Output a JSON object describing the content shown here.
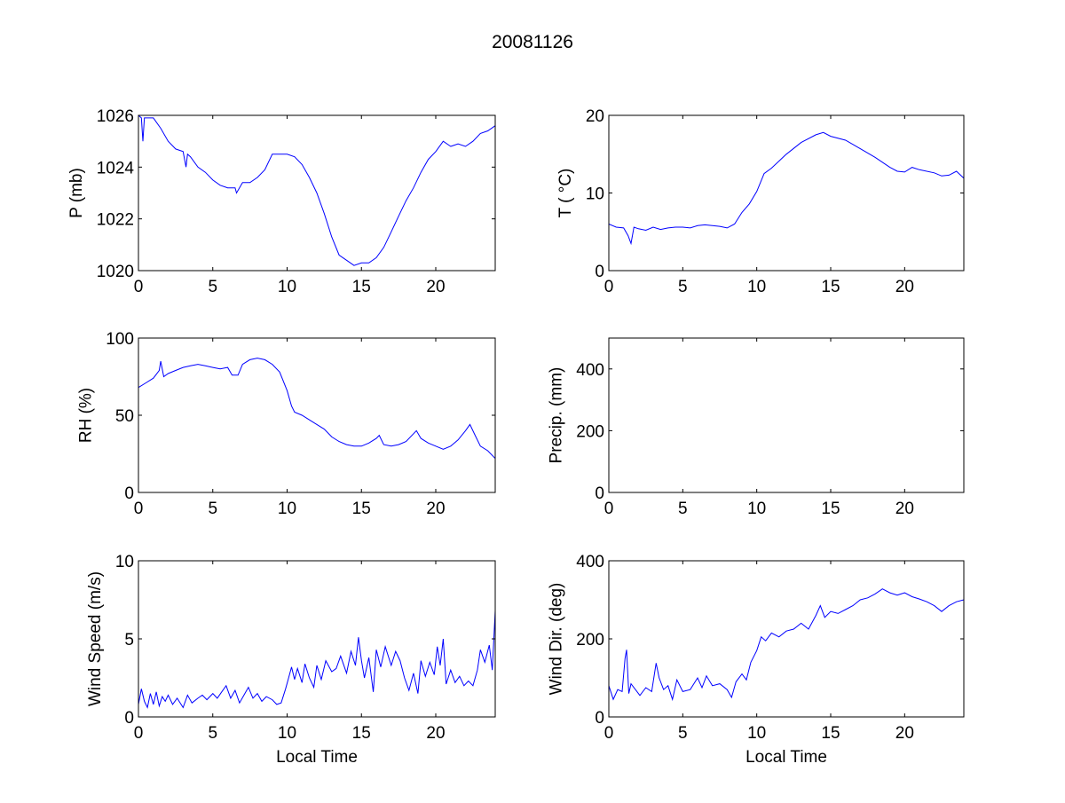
{
  "title": "20081126",
  "colors": {
    "line": "#0000ff",
    "axes": "#000000",
    "background": "#ffffff"
  },
  "chart_data": [
    {
      "type": "line",
      "panel": "top-left",
      "xlabel": "",
      "ylabel": "P (mb)",
      "xlim": [
        0,
        24
      ],
      "ylim": [
        1020,
        1026
      ],
      "xticks": [
        "0",
        "5",
        "10",
        "15",
        "20"
      ],
      "yticks": [
        "1020",
        "1022",
        "1024",
        "1026"
      ],
      "xtick_values": [
        0,
        5,
        10,
        15,
        20
      ],
      "ytick_values": [
        1020,
        1022,
        1024,
        1026
      ],
      "x": [
        0,
        0.2,
        0.3,
        0.4,
        1,
        1.5,
        2,
        2.5,
        3,
        3.2,
        3.3,
        3.5,
        4,
        4.5,
        5,
        5.5,
        6,
        6.5,
        6.6,
        7,
        7.5,
        8,
        8.5,
        9,
        10,
        10.5,
        11,
        11.5,
        12,
        12.5,
        13,
        13.5,
        14,
        14.5,
        15,
        15.5,
        16,
        16.5,
        17,
        17.5,
        18,
        18.5,
        19,
        19.5,
        20,
        20.5,
        21,
        21.5,
        22,
        22.5,
        23,
        23.5,
        24
      ],
      "y": [
        1026,
        1025.9,
        1025,
        1025.9,
        1025.9,
        1025.5,
        1025,
        1024.7,
        1024.6,
        1024.0,
        1024.5,
        1024.4,
        1024,
        1023.8,
        1023.5,
        1023.3,
        1023.2,
        1023.2,
        1023.0,
        1023.4,
        1023.4,
        1023.6,
        1023.9,
        1024.5,
        1024.5,
        1024.4,
        1024.1,
        1023.6,
        1023,
        1022.2,
        1021.3,
        1020.6,
        1020.4,
        1020.2,
        1020.3,
        1020.3,
        1020.5,
        1020.9,
        1021.5,
        1022.1,
        1022.7,
        1023.2,
        1023.8,
        1024.3,
        1024.6,
        1025.0,
        1024.8,
        1024.9,
        1024.8,
        1025.0,
        1025.3,
        1025.4,
        1025.6
      ]
    },
    {
      "type": "line",
      "panel": "top-right",
      "xlabel": "",
      "ylabel": "T ( °C)",
      "xlim": [
        0,
        24
      ],
      "ylim": [
        0,
        20
      ],
      "xticks": [
        "0",
        "5",
        "10",
        "15",
        "20"
      ],
      "yticks": [
        "0",
        "10",
        "20"
      ],
      "xtick_values": [
        0,
        5,
        10,
        15,
        20
      ],
      "ytick_values": [
        0,
        10,
        20
      ],
      "x": [
        0,
        0.5,
        1,
        1.3,
        1.5,
        1.7,
        2,
        2.5,
        3,
        3.5,
        4,
        4.5,
        5,
        5.5,
        6,
        6.5,
        7,
        7.5,
        8,
        8.5,
        9,
        9.5,
        10,
        10.5,
        11,
        12,
        13,
        14,
        14.5,
        15,
        16,
        17,
        18,
        19,
        19.5,
        20,
        20.5,
        21,
        22,
        22.5,
        23,
        23.5,
        24
      ],
      "y": [
        6,
        5.6,
        5.5,
        4.5,
        3.5,
        5.6,
        5.4,
        5.2,
        5.6,
        5.3,
        5.5,
        5.6,
        5.6,
        5.5,
        5.8,
        5.9,
        5.8,
        5.7,
        5.5,
        6,
        7.5,
        8.6,
        10.2,
        12.5,
        13.2,
        15,
        16.5,
        17.5,
        17.8,
        17.3,
        16.8,
        15.7,
        14.6,
        13.3,
        12.8,
        12.7,
        13.3,
        13,
        12.6,
        12.2,
        12.3,
        12.8,
        11.9
      ]
    },
    {
      "type": "line",
      "panel": "middle-left",
      "xlabel": "",
      "ylabel": "RH (%)",
      "xlim": [
        0,
        24
      ],
      "ylim": [
        0,
        100
      ],
      "xticks": [
        "0",
        "5",
        "10",
        "15",
        "20"
      ],
      "yticks": [
        "0",
        "50",
        "100"
      ],
      "xtick_values": [
        0,
        5,
        10,
        15,
        20
      ],
      "ytick_values": [
        0,
        50,
        100
      ],
      "x": [
        0,
        0.5,
        1,
        1.4,
        1.5,
        1.7,
        2,
        2.5,
        3,
        3.5,
        4,
        4.5,
        5,
        5.5,
        6,
        6.3,
        6.7,
        7,
        7.5,
        8,
        8.5,
        9,
        9.5,
        10,
        10.3,
        10.5,
        11,
        11.5,
        12,
        12.5,
        13,
        13.5,
        14,
        14.5,
        15,
        15.5,
        16,
        16.2,
        16.5,
        17,
        17.5,
        18,
        18.7,
        19,
        19.5,
        20,
        20.5,
        21,
        21.5,
        22,
        22.3,
        22.6,
        23,
        23.5,
        24
      ],
      "y": [
        68,
        71,
        74,
        79,
        85,
        75,
        77,
        79,
        81,
        82,
        83,
        82,
        81,
        80,
        81,
        76,
        76,
        83,
        86,
        87,
        86,
        83,
        78,
        66,
        56,
        52,
        50,
        47,
        44,
        41,
        36,
        33,
        31,
        30,
        30,
        32,
        35,
        37,
        31,
        30,
        31,
        33,
        40,
        35,
        32,
        30,
        28,
        30,
        34,
        40,
        44,
        38,
        30,
        27,
        22
      ]
    },
    {
      "type": "line",
      "panel": "middle-right",
      "xlabel": "",
      "ylabel": "Precip. (mm)",
      "xlim": [
        0,
        24
      ],
      "ylim": [
        0,
        500
      ],
      "xticks": [
        "0",
        "5",
        "10",
        "15",
        "20"
      ],
      "yticks": [
        "0",
        "200",
        "400"
      ],
      "xtick_values": [
        0,
        5,
        10,
        15,
        20
      ],
      "ytick_values": [
        0,
        200,
        400
      ],
      "x": [],
      "y": []
    },
    {
      "type": "line",
      "panel": "bottom-left",
      "xlabel": "Local Time",
      "ylabel": "Wind Speed (m/s)",
      "xlim": [
        0,
        24
      ],
      "ylim": [
        0,
        10
      ],
      "xticks": [
        "0",
        "5",
        "10",
        "15",
        "20"
      ],
      "yticks": [
        "0",
        "5",
        "10"
      ],
      "xtick_values": [
        0,
        5,
        10,
        15,
        20
      ],
      "ytick_values": [
        0,
        5,
        10
      ],
      "x": [
        0,
        0.2,
        0.4,
        0.6,
        0.8,
        1,
        1.2,
        1.4,
        1.6,
        1.8,
        2,
        2.3,
        2.6,
        3,
        3.3,
        3.6,
        4,
        4.3,
        4.6,
        5,
        5.3,
        5.6,
        5.9,
        6.2,
        6.5,
        6.8,
        7.1,
        7.4,
        7.7,
        8,
        8.3,
        8.6,
        9,
        9.3,
        9.6,
        9.9,
        10.1,
        10.3,
        10.5,
        10.7,
        11,
        11.2,
        11.5,
        11.8,
        12,
        12.3,
        12.6,
        13,
        13.3,
        13.6,
        14,
        14.3,
        14.6,
        14.8,
        15,
        15.2,
        15.5,
        15.8,
        16,
        16.3,
        16.6,
        17,
        17.3,
        17.6,
        17.9,
        18.2,
        18.5,
        18.8,
        19,
        19.3,
        19.6,
        19.9,
        20.1,
        20.3,
        20.5,
        20.7,
        21,
        21.3,
        21.6,
        21.9,
        22.2,
        22.5,
        22.8,
        23,
        23.3,
        23.6,
        23.8,
        24
      ],
      "y": [
        0.8,
        1.8,
        1,
        0.6,
        1.5,
        0.8,
        1.6,
        0.7,
        1.3,
        1,
        1.4,
        0.8,
        1.2,
        0.6,
        1.4,
        0.9,
        1.2,
        1.4,
        1.1,
        1.5,
        1.2,
        1.6,
        2,
        1.2,
        1.7,
        0.9,
        1.4,
        1.9,
        1.2,
        1.5,
        1,
        1.3,
        1.1,
        0.8,
        0.9,
        1.8,
        2.5,
        3.2,
        2.4,
        3.1,
        2.2,
        3.4,
        2.5,
        1.9,
        3.3,
        2.4,
        3.6,
        2.9,
        3.1,
        3.9,
        2.8,
        4.2,
        3.3,
        5.1,
        3.6,
        2.5,
        3.8,
        1.6,
        4.3,
        3.2,
        4.5,
        3.3,
        4.2,
        3.6,
        2.5,
        1.7,
        2.8,
        1.5,
        3.6,
        2.6,
        3.5,
        2.7,
        4.5,
        3.3,
        5,
        2.1,
        3,
        2.2,
        2.6,
        2,
        2.3,
        2,
        3,
        4.3,
        3.5,
        4.6,
        3,
        6.8
      ]
    },
    {
      "type": "line",
      "panel": "bottom-right",
      "xlabel": "Local Time",
      "ylabel": "Wind Dir. (deg)",
      "xlim": [
        0,
        24
      ],
      "ylim": [
        0,
        400
      ],
      "xticks": [
        "0",
        "5",
        "10",
        "15",
        "20"
      ],
      "yticks": [
        "0",
        "200",
        "400"
      ],
      "xtick_values": [
        0,
        5,
        10,
        15,
        20
      ],
      "ytick_values": [
        0,
        200,
        400
      ],
      "x": [
        0,
        0.3,
        0.6,
        0.9,
        1.1,
        1.2,
        1.35,
        1.5,
        1.8,
        2.1,
        2.5,
        2.9,
        3.2,
        3.4,
        3.7,
        4,
        4.3,
        4.6,
        5,
        5.5,
        6,
        6.3,
        6.6,
        7,
        7.5,
        8,
        8.3,
        8.6,
        9,
        9.3,
        9.6,
        10,
        10.3,
        10.6,
        11,
        11.5,
        12,
        12.5,
        13,
        13.5,
        14,
        14.3,
        14.6,
        15,
        15.5,
        16,
        16.5,
        17,
        17.5,
        18,
        18.5,
        19,
        19.5,
        20,
        20.5,
        21,
        21.5,
        22,
        22.5,
        23,
        23.5,
        24
      ],
      "y": [
        80,
        45,
        70,
        65,
        150,
        172,
        60,
        85,
        70,
        55,
        75,
        65,
        138,
        100,
        70,
        80,
        45,
        95,
        65,
        70,
        100,
        75,
        105,
        80,
        85,
        70,
        50,
        90,
        110,
        95,
        140,
        170,
        205,
        195,
        215,
        205,
        220,
        225,
        240,
        225,
        260,
        285,
        255,
        270,
        265,
        275,
        285,
        300,
        305,
        315,
        328,
        318,
        312,
        318,
        308,
        302,
        295,
        285,
        270,
        285,
        295,
        300
      ]
    }
  ]
}
